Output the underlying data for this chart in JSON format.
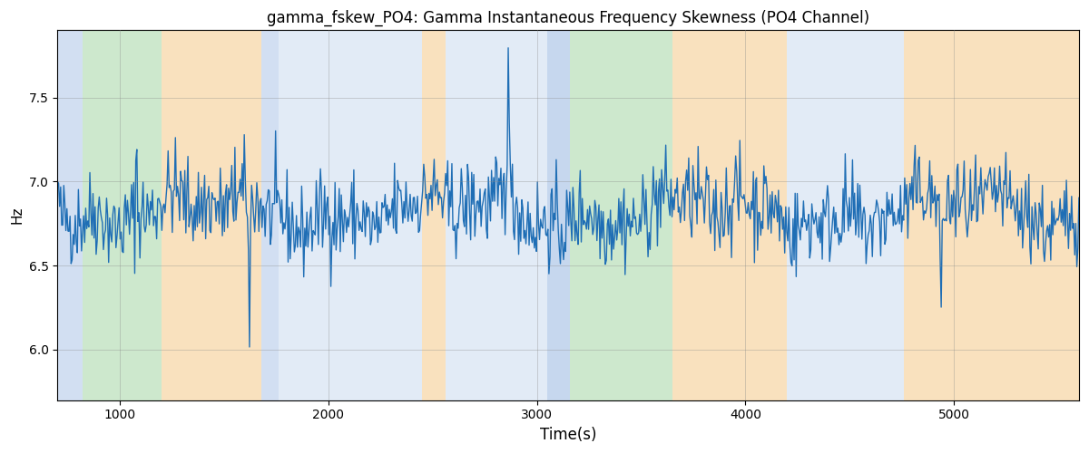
{
  "title": "gamma_fskew_PO4: Gamma Instantaneous Frequency Skewness (PO4 Channel)",
  "xlabel": "Time(s)",
  "ylabel": "Hz",
  "xlim": [
    700,
    5600
  ],
  "ylim": [
    5.7,
    7.9
  ],
  "yticks": [
    6.0,
    6.5,
    7.0,
    7.5
  ],
  "xticks": [
    1000,
    2000,
    3000,
    4000,
    5000
  ],
  "line_color": "#1f6eb5",
  "line_width": 1.0,
  "background_color": "#ffffff",
  "grid_color": "#888888",
  "grid_alpha": 0.4,
  "regions": [
    {
      "start": 700,
      "end": 820,
      "color": "#aec6e8",
      "alpha": 0.55
    },
    {
      "start": 820,
      "end": 1200,
      "color": "#90cc90",
      "alpha": 0.45
    },
    {
      "start": 1200,
      "end": 1680,
      "color": "#f5c98a",
      "alpha": 0.55
    },
    {
      "start": 1680,
      "end": 1760,
      "color": "#aec6e8",
      "alpha": 0.55
    },
    {
      "start": 1760,
      "end": 2450,
      "color": "#aec6e8",
      "alpha": 0.35
    },
    {
      "start": 2450,
      "end": 2560,
      "color": "#f5c98a",
      "alpha": 0.55
    },
    {
      "start": 2560,
      "end": 3050,
      "color": "#aec6e8",
      "alpha": 0.35
    },
    {
      "start": 3050,
      "end": 3160,
      "color": "#aec6e8",
      "alpha": 0.7
    },
    {
      "start": 3160,
      "end": 3650,
      "color": "#90cc90",
      "alpha": 0.45
    },
    {
      "start": 3650,
      "end": 3800,
      "color": "#f5c98a",
      "alpha": 0.55
    },
    {
      "start": 3800,
      "end": 4200,
      "color": "#f5c98a",
      "alpha": 0.55
    },
    {
      "start": 4200,
      "end": 4760,
      "color": "#aec6e8",
      "alpha": 0.35
    },
    {
      "start": 4760,
      "end": 5600,
      "color": "#f5c98a",
      "alpha": 0.55
    }
  ],
  "seed": 42,
  "n_points": 980,
  "t_start": 700,
  "t_end": 5600,
  "base_mean": 6.82,
  "noise_std": 0.13,
  "figsize": [
    12.0,
    5.0
  ],
  "dpi": 100
}
